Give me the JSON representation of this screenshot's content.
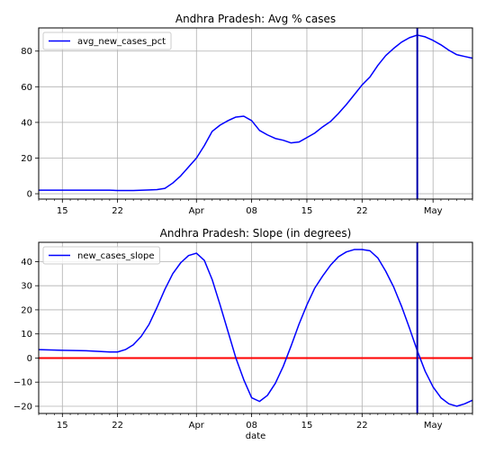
{
  "chart_data": [
    {
      "type": "line",
      "title": "Andhra Pradesh: Avg % cases",
      "xlabel": "",
      "ylabel": "",
      "x_tick_labels": [
        "15",
        "22",
        "Apr",
        "08",
        "15",
        "22",
        "May"
      ],
      "y_tick_labels": [
        "0",
        "20",
        "40",
        "60",
        "80"
      ],
      "ylim": [
        -3,
        93
      ],
      "xlim": [
        "2020-03-12",
        "2020-05-06"
      ],
      "grid": true,
      "legend_position": "upper left",
      "vertical_line_date": "2020-04-29",
      "vertical_line_color": "#0000aa",
      "series": [
        {
          "name": "avg_new_cases_pct",
          "color": "#0000ff",
          "points": [
            [
              "2020-03-12",
              2.0
            ],
            [
              "2020-03-15",
              2.0
            ],
            [
              "2020-03-18",
              2.0
            ],
            [
              "2020-03-21",
              2.0
            ],
            [
              "2020-03-22",
              1.8
            ],
            [
              "2020-03-24",
              1.8
            ],
            [
              "2020-03-26",
              2.1
            ],
            [
              "2020-03-27",
              2.3
            ],
            [
              "2020-03-28",
              3.0
            ],
            [
              "2020-03-29",
              6.0
            ],
            [
              "2020-03-30",
              10.0
            ],
            [
              "2020-03-31",
              15.0
            ],
            [
              "2020-04-01",
              20.0
            ],
            [
              "2020-04-02",
              27.0
            ],
            [
              "2020-04-03",
              35.0
            ],
            [
              "2020-04-04",
              38.5
            ],
            [
              "2020-04-05",
              41.0
            ],
            [
              "2020-04-06",
              43.0
            ],
            [
              "2020-04-07",
              43.5
            ],
            [
              "2020-04-08",
              41.0
            ],
            [
              "2020-04-09",
              35.5
            ],
            [
              "2020-04-10",
              33.0
            ],
            [
              "2020-04-11",
              31.0
            ],
            [
              "2020-04-12",
              30.0
            ],
            [
              "2020-04-13",
              28.5
            ],
            [
              "2020-04-14",
              29.0
            ],
            [
              "2020-04-15",
              31.5
            ],
            [
              "2020-04-16",
              34.0
            ],
            [
              "2020-04-17",
              37.5
            ],
            [
              "2020-04-18",
              40.5
            ],
            [
              "2020-04-19",
              45.0
            ],
            [
              "2020-04-20",
              50.0
            ],
            [
              "2020-04-21",
              55.5
            ],
            [
              "2020-04-22",
              61.0
            ],
            [
              "2020-04-23",
              65.5
            ],
            [
              "2020-04-24",
              72.0
            ],
            [
              "2020-04-25",
              77.5
            ],
            [
              "2020-04-26",
              81.5
            ],
            [
              "2020-04-27",
              85.0
            ],
            [
              "2020-04-28",
              87.5
            ],
            [
              "2020-04-29",
              89.0
            ],
            [
              "2020-04-30",
              88.0
            ],
            [
              "2020-05-01",
              86.0
            ],
            [
              "2020-05-02",
              83.5
            ],
            [
              "2020-05-03",
              80.5
            ],
            [
              "2020-05-04",
              78.0
            ],
            [
              "2020-05-05",
              77.0
            ],
            [
              "2020-05-06",
              76.0
            ]
          ]
        }
      ]
    },
    {
      "type": "line",
      "title": "Andhra Pradesh: Slope (in degrees)",
      "xlabel": "date",
      "ylabel": "",
      "x_tick_labels": [
        "15",
        "22",
        "Apr",
        "08",
        "15",
        "22",
        "May"
      ],
      "y_tick_labels": [
        "−20",
        "−10",
        "0",
        "10",
        "20",
        "30",
        "40"
      ],
      "ylim": [
        -23,
        48
      ],
      "xlim": [
        "2020-03-12",
        "2020-05-06"
      ],
      "grid": true,
      "legend_position": "upper left",
      "vertical_line_date": "2020-04-29",
      "vertical_line_color": "#0000aa",
      "horizontal_line_value": 0,
      "horizontal_line_color": "#ff0000",
      "series": [
        {
          "name": "new_cases_slope",
          "color": "#0000ff",
          "points": [
            [
              "2020-03-12",
              3.5
            ],
            [
              "2020-03-15",
              3.2
            ],
            [
              "2020-03-18",
              3.0
            ],
            [
              "2020-03-21",
              2.5
            ],
            [
              "2020-03-22",
              2.5
            ],
            [
              "2020-03-23",
              3.5
            ],
            [
              "2020-03-24",
              5.5
            ],
            [
              "2020-03-25",
              9.0
            ],
            [
              "2020-03-26",
              14.0
            ],
            [
              "2020-03-27",
              21.0
            ],
            [
              "2020-03-28",
              28.5
            ],
            [
              "2020-03-29",
              35.0
            ],
            [
              "2020-03-30",
              39.5
            ],
            [
              "2020-03-31",
              42.5
            ],
            [
              "2020-04-01",
              43.5
            ],
            [
              "2020-04-02",
              40.5
            ],
            [
              "2020-04-03",
              32.5
            ],
            [
              "2020-04-04",
              22.0
            ],
            [
              "2020-04-05",
              11.0
            ],
            [
              "2020-04-06",
              0.0
            ],
            [
              "2020-04-07",
              -9.0
            ],
            [
              "2020-04-08",
              -16.5
            ],
            [
              "2020-04-09",
              -18.0
            ],
            [
              "2020-04-10",
              -15.5
            ],
            [
              "2020-04-11",
              -10.5
            ],
            [
              "2020-04-12",
              -3.5
            ],
            [
              "2020-04-13",
              5.0
            ],
            [
              "2020-04-14",
              14.0
            ],
            [
              "2020-04-15",
              22.0
            ],
            [
              "2020-04-16",
              29.0
            ],
            [
              "2020-04-17",
              34.0
            ],
            [
              "2020-04-18",
              38.5
            ],
            [
              "2020-04-19",
              42.0
            ],
            [
              "2020-04-20",
              44.0
            ],
            [
              "2020-04-21",
              45.0
            ],
            [
              "2020-04-22",
              45.0
            ],
            [
              "2020-04-23",
              44.5
            ],
            [
              "2020-04-24",
              41.5
            ],
            [
              "2020-04-25",
              36.0
            ],
            [
              "2020-04-26",
              29.5
            ],
            [
              "2020-04-27",
              21.5
            ],
            [
              "2020-04-28",
              12.5
            ],
            [
              "2020-04-29",
              3.0
            ],
            [
              "2020-04-30",
              -5.5
            ],
            [
              "2020-05-01",
              -12.0
            ],
            [
              "2020-05-02",
              -16.5
            ],
            [
              "2020-05-03",
              -19.0
            ],
            [
              "2020-05-04",
              -20.0
            ],
            [
              "2020-05-05",
              -19.0
            ],
            [
              "2020-05-06",
              -17.5
            ]
          ]
        }
      ]
    }
  ]
}
